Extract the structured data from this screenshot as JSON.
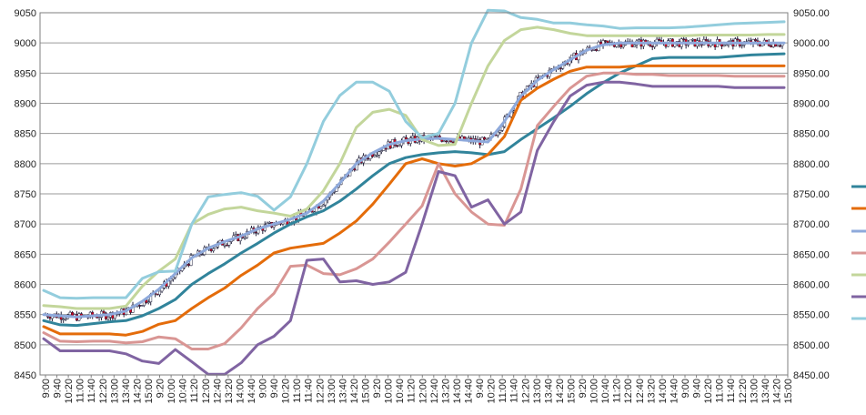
{
  "chart_data": {
    "type": "line",
    "title": "",
    "xlabel": "",
    "ylabel": "",
    "ylim": [
      8450,
      9050
    ],
    "grid": true,
    "legend": "right, unlabeled color swatches",
    "y_ticks_left": [
      "8450",
      "8500",
      "8550",
      "8600",
      "8650",
      "8700",
      "8750",
      "8800",
      "8850",
      "8900",
      "8950",
      "9000",
      "9050"
    ],
    "y_ticks_right": [
      "8450.00",
      "8500.00",
      "8550.00",
      "8600.00",
      "8650.00",
      "8700.00",
      "8750.00",
      "8800.00",
      "8850.00",
      "8900.00",
      "8950.00",
      "9000.00",
      "9050.00"
    ],
    "x_ticks": [
      "9:00",
      "9:40",
      "10:20",
      "11:00",
      "11:40",
      "12:20",
      "13:00",
      "13:40",
      "14:20",
      "15:00",
      "9:20",
      "10:00",
      "10:40",
      "11:20",
      "12:00",
      "12:40",
      "13:20",
      "14:00",
      "14:40",
      "9:00",
      "9:40",
      "10:20",
      "11:00",
      "11:40",
      "12:20",
      "13:00",
      "13:40",
      "14:20",
      "15:00",
      "9:20",
      "10:00",
      "10:40",
      "11:20",
      "12:00",
      "12:40",
      "13:20",
      "14:00",
      "14:40",
      "9:40",
      "10:20",
      "11:00",
      "11:40",
      "12:20",
      "13:00",
      "13:40",
      "14:20",
      "15:00",
      "9:20",
      "10:00",
      "10:40",
      "11:20",
      "12:00",
      "12:40",
      "13:20",
      "14:00",
      "14:40",
      "9:00",
      "9:40",
      "10:20",
      "11:00",
      "11:40",
      "12:20",
      "13:00",
      "13:40",
      "14:20",
      "15:00"
    ],
    "series": [
      {
        "color": "#31849b",
        "values": [
          8540,
          8533,
          8532,
          8535,
          8538,
          8540,
          8548,
          8560,
          8575,
          8600,
          8618,
          8634,
          8652,
          8668,
          8685,
          8700,
          8712,
          8722,
          8738,
          8758,
          8780,
          8800,
          8810,
          8815,
          8818,
          8820,
          8818,
          8815,
          8820,
          8840,
          8858,
          8876,
          8895,
          8916,
          8934,
          8950,
          8962,
          8974,
          8976,
          8976,
          8976,
          8976,
          8978,
          8980,
          8981,
          8982
        ]
      },
      {
        "color": "#e46c0a",
        "values": [
          8530,
          8518,
          8518,
          8518,
          8518,
          8516,
          8522,
          8534,
          8540,
          8560,
          8578,
          8594,
          8615,
          8632,
          8652,
          8660,
          8664,
          8668,
          8685,
          8705,
          8733,
          8766,
          8800,
          8808,
          8800,
          8796,
          8800,
          8815,
          8845,
          8905,
          8925,
          8940,
          8953,
          8960,
          8960,
          8960,
          8962,
          8962,
          8962,
          8962,
          8962,
          8962,
          8962,
          8962,
          8962,
          8962
        ]
      },
      {
        "color": "#8ea9db",
        "values": [
          8550,
          8548,
          8546,
          8548,
          8550,
          8556,
          8572,
          8592,
          8618,
          8644,
          8660,
          8671,
          8680,
          8692,
          8700,
          8708,
          8718,
          8738,
          8768,
          8800,
          8818,
          8832,
          8838,
          8841,
          8842,
          8840,
          8838,
          8836,
          8870,
          8912,
          8938,
          8956,
          8972,
          8988,
          8997,
          9000,
          9000,
          9000,
          9000,
          9000,
          9000,
          9000,
          9000,
          9000,
          9000,
          9000
        ]
      },
      {
        "color": "#d99694",
        "values": [
          8520,
          8506,
          8505,
          8506,
          8506,
          8503,
          8505,
          8513,
          8510,
          8493,
          8493,
          8502,
          8528,
          8560,
          8585,
          8630,
          8632,
          8618,
          8616,
          8626,
          8642,
          8670,
          8700,
          8730,
          8800,
          8750,
          8720,
          8700,
          8698,
          8758,
          8863,
          8895,
          8925,
          8945,
          8950,
          8950,
          8948,
          8948,
          8946,
          8946,
          8946,
          8946,
          8945,
          8945,
          8945,
          8945
        ]
      },
      {
        "color": "#c3d69b",
        "values": [
          8565,
          8563,
          8560,
          8560,
          8560,
          8564,
          8597,
          8622,
          8642,
          8700,
          8716,
          8725,
          8728,
          8722,
          8718,
          8713,
          8725,
          8755,
          8800,
          8860,
          8885,
          8890,
          8880,
          8840,
          8830,
          8832,
          8900,
          8962,
          9004,
          9022,
          9026,
          9022,
          9016,
          9012,
          9012,
          9012,
          9012,
          9012,
          9012,
          9012,
          9013,
          9013,
          9013,
          9013,
          9014,
          9014
        ]
      },
      {
        "color": "#8064a2",
        "values": [
          8510,
          8490,
          8490,
          8490,
          8490,
          8485,
          8473,
          8469,
          8492,
          8472,
          8451,
          8451,
          8470,
          8500,
          8514,
          8540,
          8640,
          8642,
          8604,
          8606,
          8600,
          8604,
          8620,
          8700,
          8787,
          8780,
          8728,
          8740,
          8700,
          8720,
          8822,
          8870,
          8912,
          8930,
          8935,
          8935,
          8932,
          8928,
          8928,
          8928,
          8928,
          8928,
          8926,
          8926,
          8926,
          8926
        ]
      },
      {
        "color": "#93cddd",
        "values": [
          8590,
          8578,
          8577,
          8578,
          8578,
          8578,
          8610,
          8621,
          8622,
          8700,
          8745,
          8749,
          8752,
          8746,
          8723,
          8745,
          8800,
          8870,
          8913,
          8935,
          8935,
          8920,
          8870,
          8843,
          8850,
          8900,
          9000,
          9054,
          9053,
          9042,
          9039,
          9033,
          9033,
          9030,
          9028,
          9024,
          9025,
          9025,
          9025,
          9026,
          9028,
          9030,
          9032,
          9033,
          9034,
          9035
        ]
      }
    ]
  }
}
